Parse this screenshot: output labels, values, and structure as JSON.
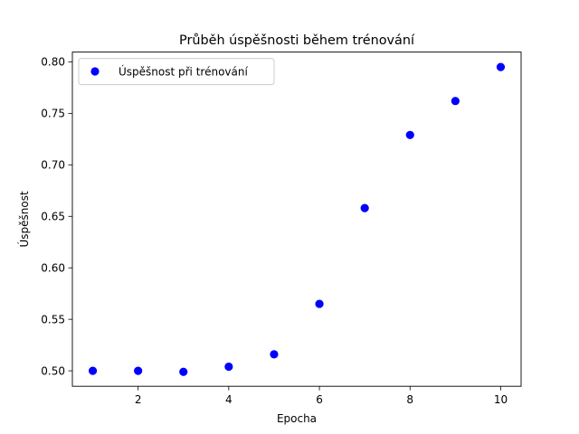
{
  "chart_data": {
    "type": "scatter",
    "title": "Průběh úspěšnosti během trénování",
    "xlabel": "Epocha",
    "ylabel": "Úspěšnost",
    "xlim": [
      0.55,
      10.45
    ],
    "ylim": [
      0.485,
      0.8095
    ],
    "xticks": [
      2,
      4,
      6,
      8,
      10
    ],
    "xtick_labels": [
      "2",
      "4",
      "6",
      "8",
      "10"
    ],
    "yticks": [
      0.5,
      0.55,
      0.6,
      0.65,
      0.7,
      0.75,
      0.8
    ],
    "ytick_labels": [
      "0.50",
      "0.55",
      "0.60",
      "0.65",
      "0.70",
      "0.75",
      "0.80"
    ],
    "grid": false,
    "legend_position": "top-left",
    "series": [
      {
        "name": "Úspěšnost při trénování",
        "color": "#0000ff",
        "marker": "circle",
        "x": [
          1,
          2,
          3,
          4,
          5,
          6,
          7,
          8,
          9,
          10
        ],
        "y": [
          0.5,
          0.5,
          0.499,
          0.504,
          0.516,
          0.565,
          0.658,
          0.729,
          0.762,
          0.795
        ]
      }
    ]
  }
}
